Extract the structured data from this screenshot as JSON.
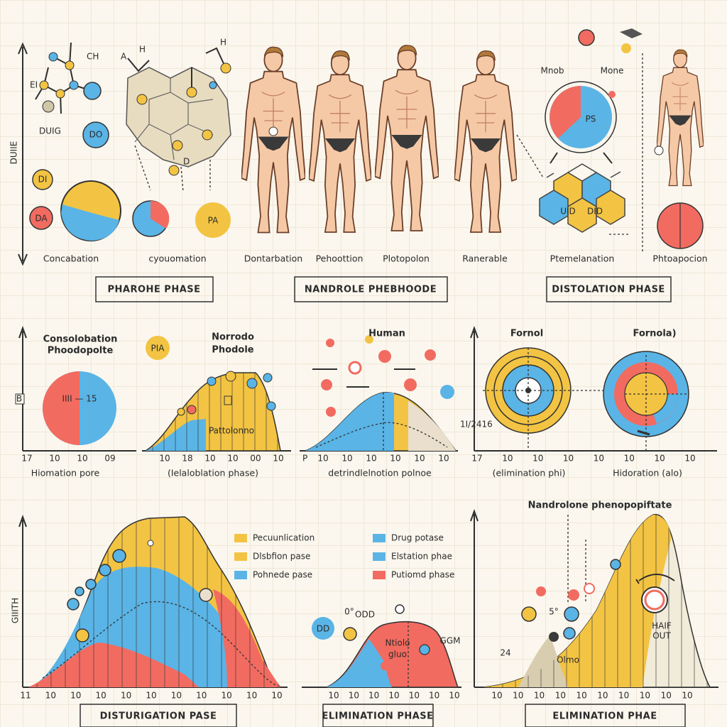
{
  "top": {
    "axis_label": "DUIIE",
    "molecule": {
      "ch": "CH",
      "ei": "EI",
      "drug": "DUIG",
      "do": "DO",
      "di": "DI",
      "da": "DA",
      "a": "A",
      "h1": "H",
      "h2": "H",
      "d": "D",
      "pa": "PA"
    },
    "captions": [
      "Concabation",
      "cyouomation",
      "Dontarbation",
      "Pehoottion",
      "Plotopolon",
      "Ranerable",
      "Ptemelanation",
      "Phtoapocion"
    ],
    "pie_labels": [
      "Mnob",
      "Mone",
      "PS"
    ],
    "hex_labels": [
      "UID",
      "DID"
    ],
    "phases": [
      "PHAROHE PHASE",
      "NANDROLE PHEBHOODE",
      "DISTOLATION PHASE"
    ]
  },
  "middle": {
    "panels": [
      {
        "title": [
          "Consolobation",
          "Phoodopolte"
        ],
        "badge": "PIA",
        "pie_text": "IIII — 15",
        "box": "B",
        "ticks": [
          "17",
          "10",
          "10",
          "09"
        ],
        "caption": "Hiomation pore"
      },
      {
        "title": [
          "Norrodo",
          "Phodole"
        ],
        "area_text": "Pattolonno",
        "ticks": [
          "10",
          "18",
          "10",
          "10",
          "00",
          "10"
        ],
        "caption": "(Ielaloblation phase)"
      },
      {
        "title": [
          "Human"
        ],
        "ticks": [
          "10",
          "10",
          "10",
          "10",
          "10",
          "10"
        ],
        "caption": "detrindlelnotion polnoe",
        "side": "P"
      },
      {
        "title": [
          "Fornol",
          "Fornola)"
        ],
        "side": "1I/2416",
        "ticks": [
          "17",
          "10",
          "10",
          "10",
          "10",
          "10",
          "10",
          "10"
        ],
        "captions": [
          "(elimination phi)",
          "Hidoration (alo)"
        ]
      }
    ]
  },
  "bottom": {
    "axis_label": "GIIITH",
    "ticks": [
      "11",
      "10",
      "10",
      "10",
      "10",
      "10",
      "10",
      "10",
      "10",
      "10",
      "10"
    ],
    "legend": [
      {
        "name": "Pecuunlication",
        "color": "#f3c443"
      },
      {
        "name": "Dlsbfion pase",
        "color": "#f3c443"
      },
      {
        "name": "Pohnede pase",
        "color": "#5ab4e6"
      },
      {
        "name": "Drug potase",
        "color": "#5ab4e6"
      },
      {
        "name": "Elstation phae",
        "color": "#5ab4e6"
      },
      {
        "name": "Putiomd phase",
        "color": "#f26b60"
      }
    ],
    "mid_labels": {
      "dd": "DD",
      "o": "0°",
      "odd": "ODD",
      "ntiolo": "Ntiolo",
      "glue": "gluo",
      "ggm": "GGM"
    },
    "mid_ticks": [
      "10",
      "10",
      "10",
      "10",
      "10",
      "10",
      "10"
    ],
    "right_title": "Nandrolone phenopopiftate",
    "right_labels": {
      "s": "5°",
      "n24": "24",
      "omo": "Olmo",
      "half": "HAIF",
      "out": "OUT"
    },
    "right_ticks": [
      "10",
      "10",
      "10",
      "10",
      "10",
      "10",
      "10",
      "10",
      "10",
      "10"
    ],
    "boxes": [
      "DISTURIGATION PASE",
      "ELIMINATION PHASE",
      "ELIMINATION PHAE"
    ]
  }
}
